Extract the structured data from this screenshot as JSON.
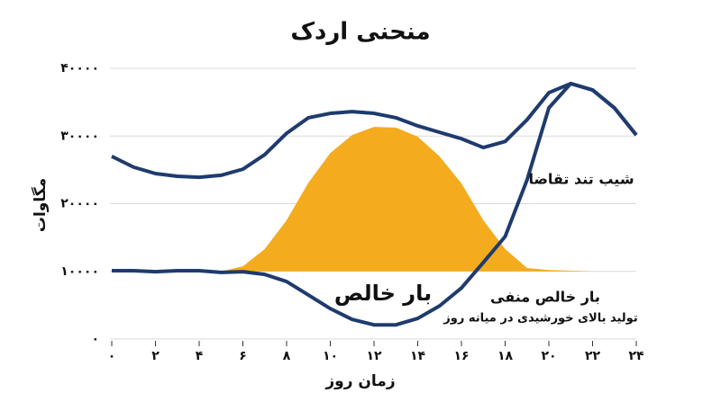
{
  "chart_data": {
    "type": "line",
    "title": "منحنی اردک",
    "xlabel": "زمان روز",
    "ylabel": "مگاوات",
    "x": [
      0,
      1,
      2,
      3,
      4,
      5,
      6,
      7,
      8,
      9,
      10,
      11,
      12,
      13,
      14,
      15,
      16,
      17,
      18,
      19,
      20,
      21,
      22,
      23,
      24
    ],
    "xlim": [
      0,
      24
    ],
    "ylim": [
      0,
      40000
    ],
    "xticks": [
      {
        "value": 0,
        "label": "۰"
      },
      {
        "value": 2,
        "label": "۲"
      },
      {
        "value": 4,
        "label": "۴"
      },
      {
        "value": 6,
        "label": "۶"
      },
      {
        "value": 8,
        "label": "۸"
      },
      {
        "value": 10,
        "label": "۱۰"
      },
      {
        "value": 12,
        "label": "۱۲"
      },
      {
        "value": 14,
        "label": "۱۴"
      },
      {
        "value": 16,
        "label": "۱۶"
      },
      {
        "value": 18,
        "label": "۱۸"
      },
      {
        "value": 20,
        "label": "۲۰"
      },
      {
        "value": 22,
        "label": "۲۲"
      },
      {
        "value": 24,
        "label": "۲۴"
      }
    ],
    "yticks": [
      {
        "value": 0,
        "label": "۰"
      },
      {
        "value": 10000,
        "label": "۱۰۰۰۰"
      },
      {
        "value": 20000,
        "label": "۲۰۰۰۰"
      },
      {
        "value": 30000,
        "label": "۳۰۰۰۰"
      },
      {
        "value": 40000,
        "label": "۴۰۰۰۰"
      }
    ],
    "grid": true,
    "series": [
      {
        "kind": "area",
        "color": "#f5ab1e",
        "base": 10000,
        "values": [
          null,
          null,
          null,
          null,
          null,
          10000,
          10750,
          13300,
          17550,
          23100,
          27500,
          30150,
          31350,
          31250,
          29900,
          27000,
          23000,
          17550,
          13300,
          10500,
          10200,
          10100,
          10000,
          10000,
          10000
        ]
      },
      {
        "kind": "line",
        "color": "#1f3b6e",
        "values": [
          27000,
          25400,
          24450,
          24050,
          23900,
          24200,
          25100,
          27250,
          30400,
          32700,
          33350,
          33600,
          33350,
          32700,
          31500,
          30550,
          29600,
          28300,
          29200,
          32400,
          36400,
          37750,
          36800,
          34150,
          30150
        ]
      },
      {
        "kind": "line",
        "color": "#1f3b6e",
        "name": "بار خالص",
        "values": [
          10100,
          10100,
          9950,
          10100,
          10100,
          9850,
          9950,
          9550,
          8500,
          6500,
          4500,
          2900,
          2100,
          2100,
          3050,
          4900,
          7550,
          11300,
          15150,
          23500,
          34150,
          37750,
          36800,
          34150,
          30150
        ]
      }
    ],
    "annotations": [
      "شیب تند تقاضا",
      "بار خالص منفی",
      "تولید بالای خورشیدی در میانه روز"
    ]
  }
}
